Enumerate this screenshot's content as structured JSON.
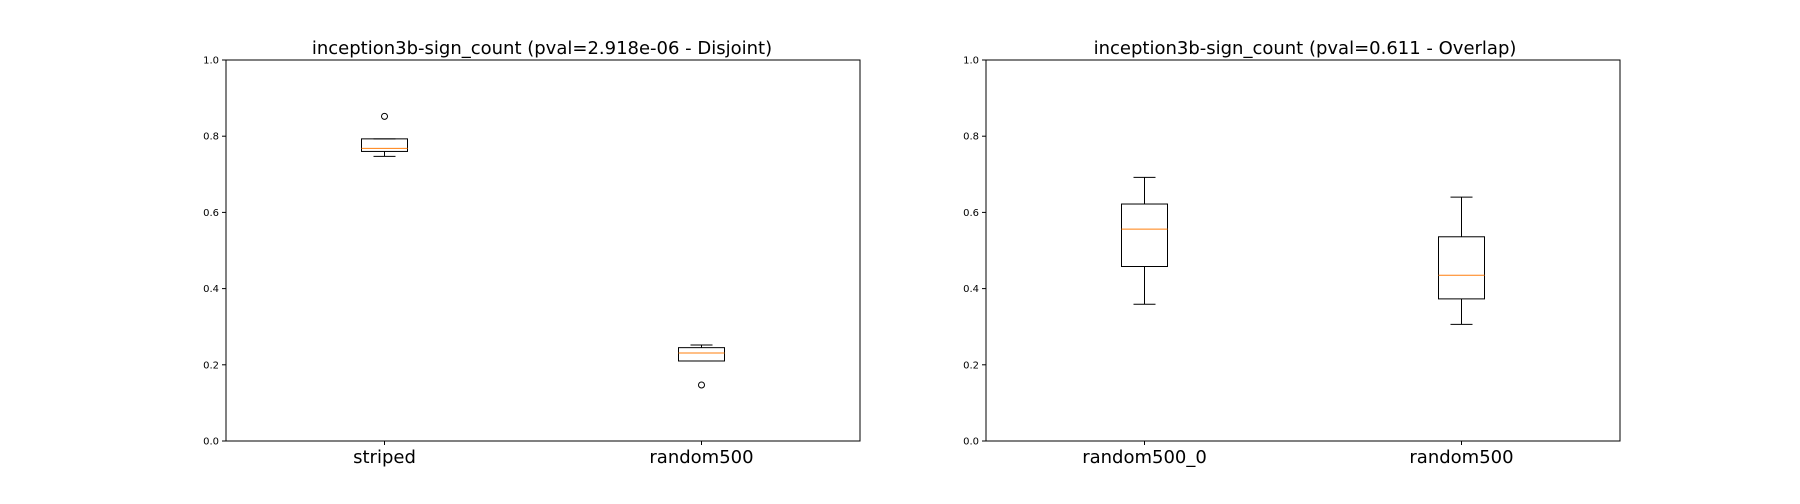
{
  "chart_data": [
    {
      "type": "box",
      "title": "inception3b-sign_count (pval=2.918e-06 - Disjoint)",
      "xlabel": "",
      "ylabel": "",
      "ylim": [
        0.0,
        1.0
      ],
      "yticks": [
        "0.0",
        "0.2",
        "0.4",
        "0.6",
        "0.8",
        "1.0"
      ],
      "grid": false,
      "categories": [
        "striped",
        "random500"
      ],
      "boxes": [
        {
          "whislo": 0.747,
          "q1": 0.76,
          "med": 0.768,
          "q3": 0.793,
          "whishi": 0.793,
          "fliers": [
            0.852
          ]
        },
        {
          "whislo": 0.21,
          "q1": 0.21,
          "med": 0.231,
          "q3": 0.245,
          "whishi": 0.252,
          "fliers": [
            0.147
          ]
        }
      ],
      "colors": {
        "box": "#000000",
        "median": "#ff7f0e"
      }
    },
    {
      "type": "box",
      "title": "inception3b-sign_count (pval=0.611 - Overlap)",
      "xlabel": "",
      "ylabel": "",
      "ylim": [
        0.0,
        1.0
      ],
      "yticks": [
        "0.0",
        "0.2",
        "0.4",
        "0.6",
        "0.8",
        "1.0"
      ],
      "grid": false,
      "categories": [
        "random500_0",
        "random500"
      ],
      "boxes": [
        {
          "whislo": 0.359,
          "q1": 0.458,
          "med": 0.556,
          "q3": 0.622,
          "whishi": 0.692,
          "fliers": []
        },
        {
          "whislo": 0.306,
          "q1": 0.373,
          "med": 0.435,
          "q3": 0.536,
          "whishi": 0.64,
          "fliers": []
        }
      ],
      "colors": {
        "box": "#000000",
        "median": "#ff7f0e"
      }
    }
  ]
}
